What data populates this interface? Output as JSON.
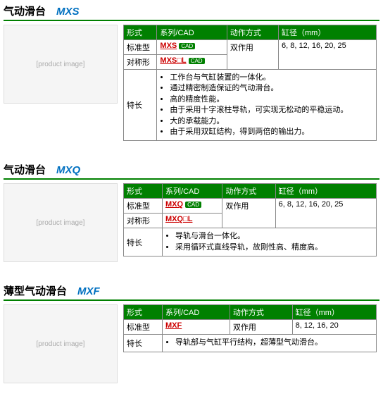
{
  "sections": [
    {
      "title_cn": "气动滑台",
      "title_model": "MXS",
      "headers": [
        "形式",
        "系列/CAD",
        "动作方式",
        "缸径（mm）"
      ],
      "rows": [
        {
          "form": "标准型",
          "series": "MXS",
          "has_cad": true,
          "action_rowspan": true,
          "action": "双作用",
          "bore_rowspan": true,
          "bore": "6, 8, 12, 16, 20, 25"
        },
        {
          "form": "对称形",
          "series": "MXS□L",
          "has_cad": true
        }
      ],
      "feature_label": "特长",
      "features": [
        "工作台与气缸装置的一体化。",
        "通过精密制造保证的气动滑台。",
        "高的精度性能。",
        "由于采用十字滚柱导轨，可实现无松动的平稳运动。",
        "大的承载能力。",
        "由于采用双缸结构，得到两倍的输出力。"
      ]
    },
    {
      "title_cn": "气动滑台",
      "title_model": "MXQ",
      "headers": [
        "形式",
        "系列/CAD",
        "动作方式",
        "缸径（mm）"
      ],
      "rows": [
        {
          "form": "标准型",
          "series": "MXQ",
          "has_cad": true,
          "action_rowspan": true,
          "action": "双作用",
          "bore_rowspan": true,
          "bore": "6, 8, 12, 16, 20, 25"
        },
        {
          "form": "对称形",
          "series": "MXQ□L",
          "has_cad": false
        }
      ],
      "feature_label": "特长",
      "features": [
        "导轨与滑台一体化。",
        "采用循环式直线导轨，故刚性高、精度高。"
      ]
    },
    {
      "title_cn": "薄型气动滑台",
      "title_model": "MXF",
      "headers": [
        "形式",
        "系列/CAD",
        "动作方式",
        "缸径（mm）"
      ],
      "rows": [
        {
          "form": "标准型",
          "series": "MXF",
          "has_cad": false,
          "action": "双作用",
          "bore": "8, 12, 16, 20"
        }
      ],
      "feature_label": "特长",
      "features": [
        "导轨部与气缸平行结构，超薄型气动滑台。"
      ]
    }
  ],
  "colors": {
    "header_bg": "#008000",
    "header_text": "#ffffff",
    "link": "#cc0000",
    "title_model": "#0070c0",
    "border": "#888888"
  }
}
